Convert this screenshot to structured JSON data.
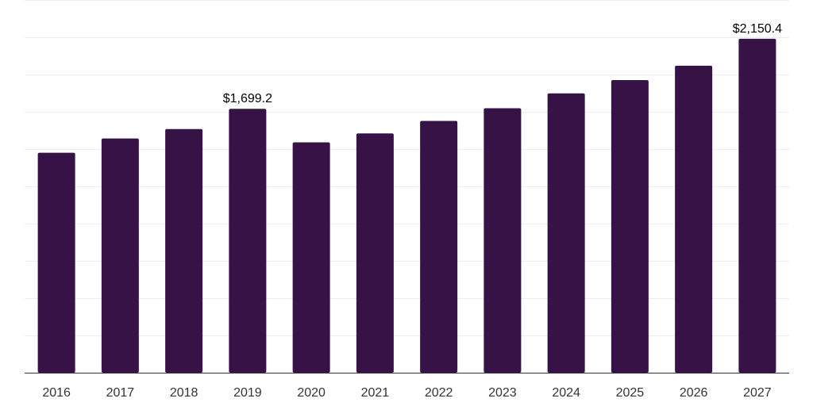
{
  "colors": {
    "bar": "#371247",
    "grid": "#ececec",
    "axis": "#333333",
    "text": "#000000",
    "tick_text": "#333333",
    "background": "#ffffff"
  },
  "chart_data": {
    "type": "bar",
    "title": "",
    "xlabel": "",
    "ylabel": "",
    "categories": [
      "2016",
      "2017",
      "2018",
      "2019",
      "2020",
      "2021",
      "2022",
      "2023",
      "2024",
      "2025",
      "2026",
      "2027"
    ],
    "values": [
      1416.7,
      1508.2,
      1569.2,
      1699.2,
      1483.7,
      1541.0,
      1621.1,
      1703.0,
      1798.5,
      1884.3,
      1976.9,
      2150.4
    ],
    "data_labels": [
      {
        "category": "2019",
        "text": "$1,699.2"
      },
      {
        "category": "2027",
        "text": "$2,150.4"
      }
    ],
    "ylim": [
      0,
      2400
    ],
    "y_ticks_shown": false,
    "grid": true,
    "legend": "none"
  }
}
